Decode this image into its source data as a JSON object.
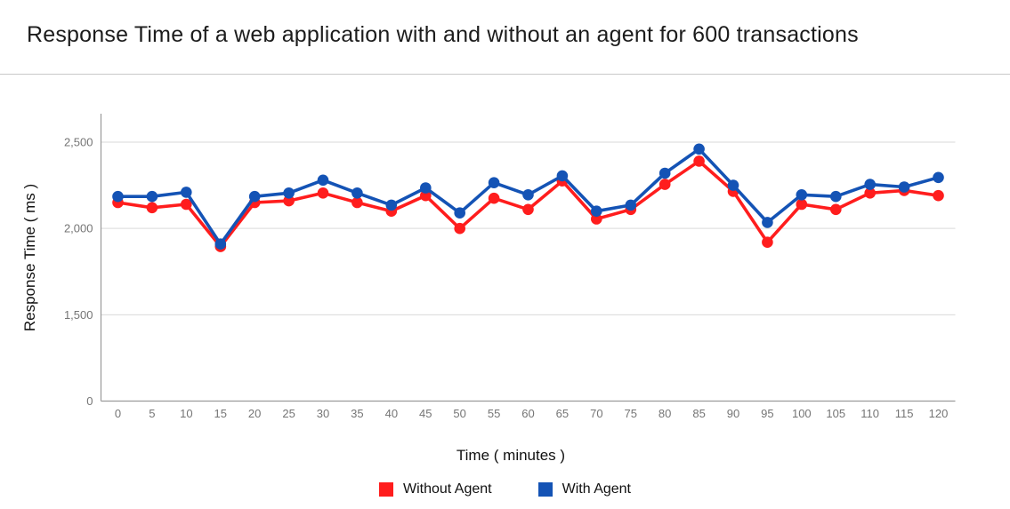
{
  "header": {
    "title": "Response Time of a web application with and without an agent for 600 transactions"
  },
  "chart_data": {
    "type": "line",
    "title": "Response Time of a web application with and without an agent for 600 transactions",
    "xlabel": "Time ( minutes )",
    "ylabel": "Response Time ( ms )",
    "x": [
      0,
      5,
      10,
      15,
      20,
      25,
      30,
      35,
      40,
      45,
      50,
      55,
      60,
      65,
      70,
      75,
      80,
      85,
      90,
      95,
      100,
      105,
      110,
      115,
      120
    ],
    "x_tick_labels": [
      "0",
      "5",
      "10",
      "15",
      "20",
      "25",
      "30",
      "35",
      "40",
      "45",
      "50",
      "55",
      "60",
      "65",
      "70",
      "75",
      "80",
      "85",
      "90",
      "95",
      "100",
      "105",
      "110",
      "115",
      "120"
    ],
    "y_ticks": [
      0,
      1500,
      2000,
      2500
    ],
    "y_tick_labels": [
      "0",
      "1,500",
      "2,000",
      "2,500"
    ],
    "y_axis_note": "ticks rendered at uniform pixel spacing (non-linear value scale)",
    "xlim": [
      0,
      120
    ],
    "ylim": [
      0,
      2660
    ],
    "grid": true,
    "legend_position": "bottom",
    "series": [
      {
        "name": "Without Agent",
        "color": "#ff1d1d",
        "values": [
          2150,
          2120,
          2140,
          1895,
          2150,
          2160,
          2205,
          2150,
          2100,
          2190,
          2000,
          2175,
          2110,
          2275,
          2055,
          2110,
          2255,
          2390,
          2215,
          1920,
          2140,
          2110,
          2205,
          2220,
          2190
        ]
      },
      {
        "name": "With Agent",
        "color": "#1453b5",
        "values": [
          2185,
          2185,
          2210,
          1910,
          2185,
          2205,
          2280,
          2205,
          2135,
          2235,
          2090,
          2265,
          2195,
          2305,
          2100,
          2135,
          2320,
          2460,
          2250,
          2035,
          2195,
          2185,
          2255,
          2240,
          2295
        ]
      }
    ]
  }
}
